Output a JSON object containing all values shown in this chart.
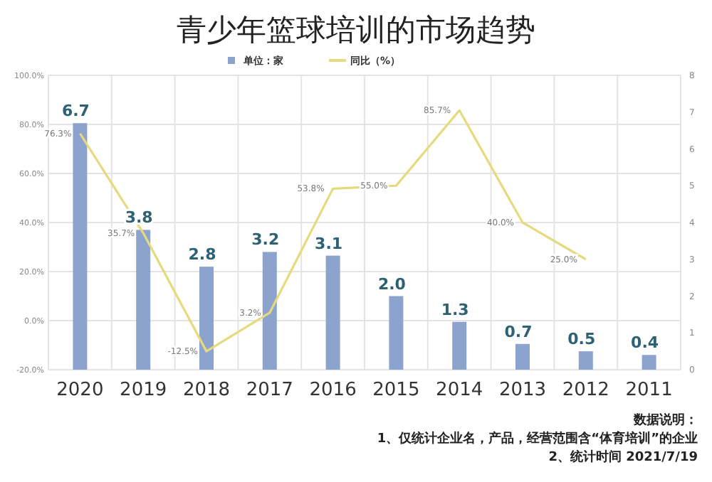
{
  "chart_data": {
    "type": "bar",
    "title": "青少年篮球培训的市场趋势",
    "categories": [
      "2020",
      "2019",
      "2018",
      "2017",
      "2016",
      "2015",
      "2014",
      "2013",
      "2012",
      "2011"
    ],
    "series": [
      {
        "name": "单位：家",
        "axis": "y2",
        "color": "#8ba3cd",
        "values": [
          6.7,
          3.8,
          2.8,
          3.2,
          3.1,
          2.0,
          1.3,
          0.7,
          0.5,
          0.4
        ],
        "value_labels": [
          "6.7",
          "3.8",
          "2.8",
          "3.2",
          "3.1",
          "2.0",
          "1.3",
          "0.7",
          "0.5",
          "0.4"
        ]
      },
      {
        "name": "同比（%）",
        "type": "line",
        "color": "#e6da7e",
        "values": [
          76.3,
          35.7,
          -12.5,
          3.2,
          53.8,
          55.0,
          85.7,
          40.0,
          25.0,
          null
        ],
        "value_labels": [
          "76.3%",
          "35.7%",
          "-12.5%",
          "3.2%",
          "53.8%",
          "55.0%",
          "85.7%",
          "40.0%",
          "25.0%",
          null
        ]
      }
    ],
    "ylim": [
      -20,
      100
    ],
    "yticks": [
      {
        "value": -20,
        "label": "-20.0%"
      },
      {
        "value": 0,
        "label": "0.0%"
      },
      {
        "value": 20,
        "label": "20.0%"
      },
      {
        "value": 40,
        "label": "40.0%"
      },
      {
        "value": 60,
        "label": "60.0%"
      },
      {
        "value": 80,
        "label": "80.0%"
      },
      {
        "value": 100,
        "label": "100.0%"
      }
    ],
    "y2lim": [
      0,
      8
    ],
    "y2ticks": [
      0,
      1,
      2,
      3,
      4,
      5,
      6,
      7,
      8
    ],
    "grid": true,
    "legend": "top",
    "annotations": [
      "数据说明：",
      "1、仅统计企业名，产品，经营范围含“体育培训”的企业",
      "2、统计时间 2021/7/19"
    ]
  }
}
